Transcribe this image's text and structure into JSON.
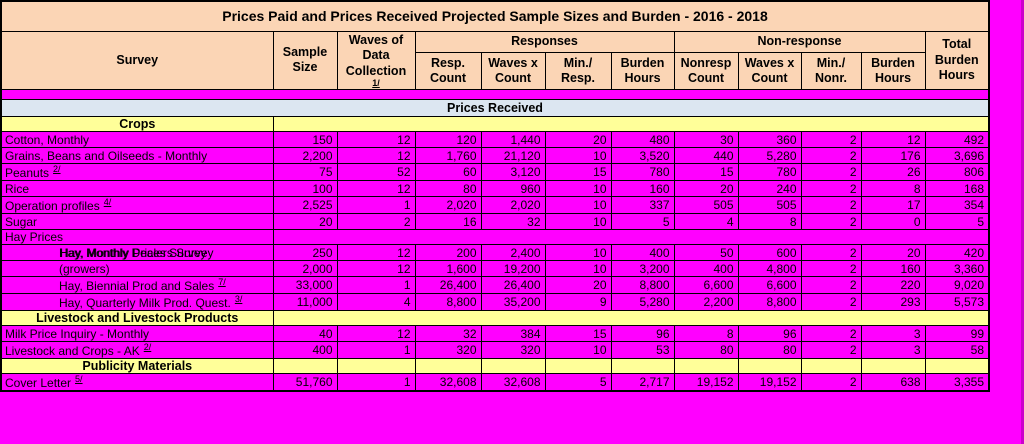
{
  "title": "Prices Paid and Prices Received Projected Sample Sizes and Burden - 2016 - 2018",
  "band_label": "Prices Received",
  "columns": {
    "survey": "Survey",
    "sample_size": "Sample Size",
    "waves": "Waves of Data Collection",
    "waves_footnote": "1/",
    "responses_group": "Responses",
    "nonresponse_group": "Non-response",
    "total": "Total Burden Hours",
    "resp_sub": [
      "Resp. Count",
      "Waves x Count",
      "Min./ Resp.",
      "Burden Hours"
    ],
    "nonresp_sub": [
      "Nonresp Count",
      "Waves x Count",
      "Min./ Nonr.",
      "Burden Hours"
    ]
  },
  "rows": [
    {
      "type": "section",
      "label": "Crops",
      "span": true
    },
    {
      "type": "data",
      "label": "Cotton, Monthly",
      "values": [
        "150",
        "12",
        "120",
        "1,440",
        "20",
        "480",
        "30",
        "360",
        "2",
        "12",
        "492"
      ]
    },
    {
      "type": "data",
      "label": "Grains, Beans and Oilseeds - Monthly",
      "values": [
        "2,200",
        "12",
        "1,760",
        "21,120",
        "10",
        "3,520",
        "440",
        "5,280",
        "2",
        "176",
        "3,696"
      ]
    },
    {
      "type": "data",
      "label": "Peanuts",
      "footnote": "2/",
      "values": [
        "75",
        "52",
        "60",
        "3,120",
        "15",
        "780",
        "15",
        "780",
        "2",
        "26",
        "806"
      ]
    },
    {
      "type": "data",
      "label": "Rice",
      "values": [
        "100",
        "12",
        "80",
        "960",
        "10",
        "160",
        "20",
        "240",
        "2",
        "8",
        "168"
      ]
    },
    {
      "type": "data",
      "label": "Operation profiles",
      "footnote": "4/",
      "values": [
        "2,525",
        "1",
        "2,020",
        "2,020",
        "10",
        "337",
        "505",
        "505",
        "2",
        "17",
        "354"
      ]
    },
    {
      "type": "data",
      "label": "Sugar",
      "values": [
        "20",
        "2",
        "16",
        "32",
        "10",
        "5",
        "4",
        "8",
        "2",
        "0",
        "5"
      ]
    },
    {
      "type": "subhead",
      "label": "Hay Prices",
      "span": true
    },
    {
      "type": "data",
      "label": "Hay, Monthly Dealers Survey",
      "label_overlay": "Hay, Monthly Prices Survey",
      "indent": true,
      "values": [
        "250",
        "12",
        "200",
        "2,400",
        "10",
        "400",
        "50",
        "600",
        "2",
        "20",
        "420"
      ]
    },
    {
      "type": "data",
      "label": "(growers)",
      "indent": true,
      "values": [
        "2,000",
        "12",
        "1,600",
        "19,200",
        "10",
        "3,200",
        "400",
        "4,800",
        "2",
        "160",
        "3,360"
      ]
    },
    {
      "type": "data",
      "label": "Hay, Biennial Prod and Sales",
      "footnote": "7/",
      "indent": true,
      "values": [
        "33,000",
        "1",
        "26,400",
        "26,400",
        "20",
        "8,800",
        "6,600",
        "6,600",
        "2",
        "220",
        "9,020"
      ]
    },
    {
      "type": "data",
      "label": "Hay, Quarterly Milk Prod. Quest.",
      "footnote": "3/",
      "indent": true,
      "values": [
        "11,000",
        "4",
        "8,800",
        "35,200",
        "9",
        "5,280",
        "2,200",
        "8,800",
        "2",
        "293",
        "5,573"
      ]
    },
    {
      "type": "section",
      "label": "Livestock and Livestock Products",
      "span": true
    },
    {
      "type": "data",
      "label": "Milk Price Inquiry - Monthly",
      "values": [
        "40",
        "12",
        "32",
        "384",
        "15",
        "96",
        "8",
        "96",
        "2",
        "3",
        "99"
      ]
    },
    {
      "type": "data",
      "label": "Livestock and Crops - AK",
      "footnote": "2/",
      "values": [
        "400",
        "1",
        "320",
        "320",
        "10",
        "53",
        "80",
        "80",
        "2",
        "3",
        "58"
      ]
    },
    {
      "type": "section",
      "label": "Publicity Materials",
      "span": false
    },
    {
      "type": "data",
      "label": "Cover Letter",
      "footnote": "5/",
      "values": [
        "51,760",
        "1",
        "32,608",
        "32,608",
        "5",
        "2,717",
        "19,152",
        "19,152",
        "2",
        "638",
        "3,355"
      ]
    }
  ],
  "colors": {
    "page_bg": "#FF00FF",
    "header_bg": "#FBD5B5",
    "section_bg": "#FFFF99",
    "band_bg": "#DCE6F1",
    "row_bg": "#FF00FF",
    "border": "#000000",
    "text": "#000000"
  }
}
